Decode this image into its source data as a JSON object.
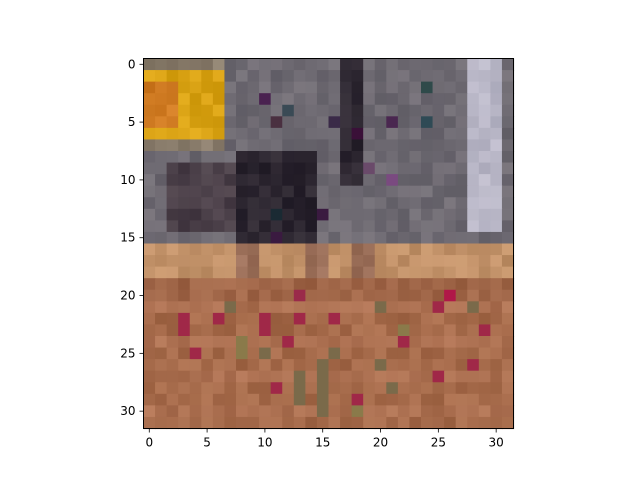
{
  "chart_data": {
    "type": "heatmap",
    "title": "",
    "xlabel": "",
    "ylabel": "",
    "rows": 32,
    "cols": 32,
    "xlim": [
      -0.5,
      31.5
    ],
    "ylim": [
      31.5,
      -0.5
    ],
    "x_ticks": [
      0,
      5,
      10,
      15,
      20,
      25,
      30
    ],
    "y_ticks": [
      0,
      5,
      10,
      15,
      20,
      25,
      30
    ],
    "grid": false,
    "legend": "none",
    "palette": {
      "shelf": "#6e6a72",
      "dark": "#2c2630",
      "yellow": "#d9a214",
      "orange": "#cf7a22",
      "light": "#b8b6c6",
      "counter": "#c19168",
      "table": "#a56a4a",
      "table_mid": "#ad7152",
      "wood": "#9f6547",
      "wall_edge": "#8a7d6c"
    },
    "accents": [
      {
        "row": 2,
        "col": 24,
        "color": "#2f4a4a"
      },
      {
        "row": 3,
        "col": 10,
        "color": "#4a2250"
      },
      {
        "row": 4,
        "col": 12,
        "color": "#3a4a55"
      },
      {
        "row": 5,
        "col": 11,
        "color": "#4a3040"
      },
      {
        "row": 5,
        "col": 16,
        "color": "#3a2a48"
      },
      {
        "row": 5,
        "col": 21,
        "color": "#4a2750"
      },
      {
        "row": 5,
        "col": 24,
        "color": "#2f4a55"
      },
      {
        "row": 6,
        "col": 18,
        "color": "#3a1038"
      },
      {
        "row": 9,
        "col": 19,
        "color": "#6a4a6a"
      },
      {
        "row": 10,
        "col": 21,
        "color": "#7a4a80"
      },
      {
        "row": 13,
        "col": 11,
        "color": "#1a2a33"
      },
      {
        "row": 13,
        "col": 15,
        "color": "#3a1a40"
      },
      {
        "row": 15,
        "col": 11,
        "color": "#3a1a40"
      },
      {
        "row": 20,
        "col": 26,
        "color": "#b01848"
      },
      {
        "row": 20,
        "col": 13,
        "color": "#9a2a4a"
      },
      {
        "row": 21,
        "col": 7,
        "color": "#7a6a4a"
      },
      {
        "row": 21,
        "col": 20,
        "color": "#7a6a4a"
      },
      {
        "row": 21,
        "col": 25,
        "color": "#a02848"
      },
      {
        "row": 21,
        "col": 28,
        "color": "#7a6a4a"
      },
      {
        "row": 22,
        "col": 3,
        "color": "#a02848"
      },
      {
        "row": 22,
        "col": 6,
        "color": "#a02848"
      },
      {
        "row": 22,
        "col": 10,
        "color": "#a02848"
      },
      {
        "row": 22,
        "col": 13,
        "color": "#a02848"
      },
      {
        "row": 22,
        "col": 16,
        "color": "#a02848"
      },
      {
        "row": 23,
        "col": 3,
        "color": "#a02848"
      },
      {
        "row": 23,
        "col": 10,
        "color": "#a02848"
      },
      {
        "row": 23,
        "col": 22,
        "color": "#8a7a4a"
      },
      {
        "row": 23,
        "col": 29,
        "color": "#a02848"
      },
      {
        "row": 24,
        "col": 8,
        "color": "#8a7a4a"
      },
      {
        "row": 24,
        "col": 12,
        "color": "#a02848"
      },
      {
        "row": 24,
        "col": 22,
        "color": "#a02848"
      },
      {
        "row": 25,
        "col": 4,
        "color": "#a02848"
      },
      {
        "row": 25,
        "col": 8,
        "color": "#8a7a4a"
      },
      {
        "row": 25,
        "col": 10,
        "color": "#7a6a4a"
      },
      {
        "row": 25,
        "col": 16,
        "color": "#7a6a4a"
      },
      {
        "row": 26,
        "col": 15,
        "color": "#7a6a4a"
      },
      {
        "row": 26,
        "col": 20,
        "color": "#7a6a4a"
      },
      {
        "row": 26,
        "col": 28,
        "color": "#a02848"
      },
      {
        "row": 27,
        "col": 13,
        "color": "#7a6a4a"
      },
      {
        "row": 27,
        "col": 15,
        "color": "#7a6a4a"
      },
      {
        "row": 27,
        "col": 25,
        "color": "#a02848"
      },
      {
        "row": 28,
        "col": 11,
        "color": "#a02848"
      },
      {
        "row": 28,
        "col": 13,
        "color": "#7a6a4a"
      },
      {
        "row": 28,
        "col": 15,
        "color": "#7a6a4a"
      },
      {
        "row": 28,
        "col": 21,
        "color": "#7a6a4a"
      },
      {
        "row": 29,
        "col": 13,
        "color": "#7a6a4a"
      },
      {
        "row": 29,
        "col": 15,
        "color": "#7a6a4a"
      },
      {
        "row": 29,
        "col": 18,
        "color": "#a02848"
      },
      {
        "row": 30,
        "col": 15,
        "color": "#7a6a4a"
      },
      {
        "row": 30,
        "col": 18,
        "color": "#8a7a4a"
      }
    ]
  }
}
